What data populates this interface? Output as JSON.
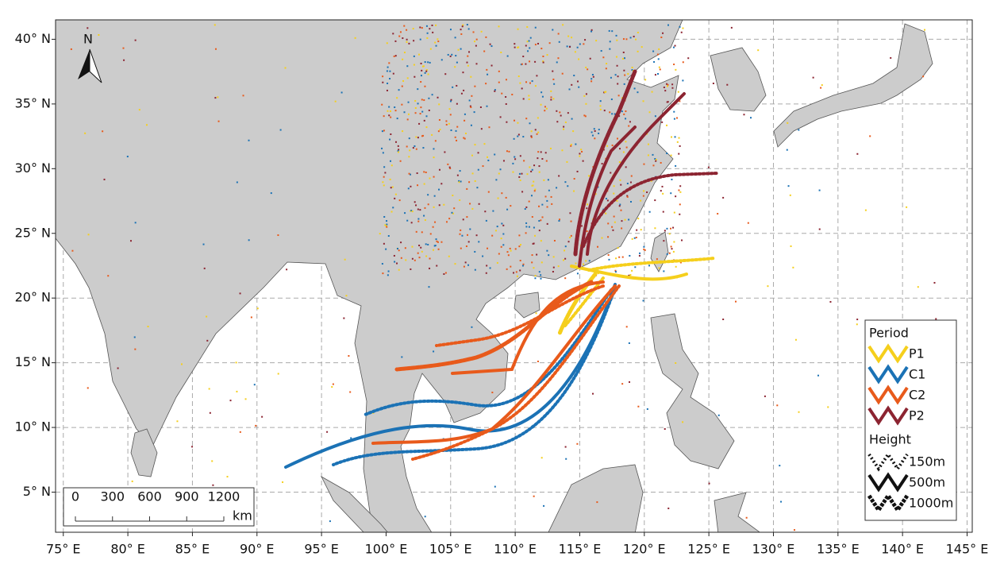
{
  "map": {
    "xlim": [
      74.4,
      145.4
    ],
    "ylim": [
      1.9,
      41.5
    ],
    "grid": true,
    "xticks": [
      {
        "value": 75,
        "label": "75° E"
      },
      {
        "value": 80,
        "label": "80° E"
      },
      {
        "value": 85,
        "label": "85° E"
      },
      {
        "value": 90,
        "label": "90° E"
      },
      {
        "value": 95,
        "label": "95° E"
      },
      {
        "value": 100,
        "label": "100° E"
      },
      {
        "value": 105,
        "label": "105° E"
      },
      {
        "value": 110,
        "label": "110° E"
      },
      {
        "value": 115,
        "label": "115° E"
      },
      {
        "value": 120,
        "label": "120° E"
      },
      {
        "value": 125,
        "label": "125° E"
      },
      {
        "value": 130,
        "label": "130° E"
      },
      {
        "value": 135,
        "label": "135° E"
      },
      {
        "value": 140,
        "label": "140° E"
      },
      {
        "value": 145,
        "label": "145° E"
      }
    ],
    "yticks": [
      {
        "value": 5,
        "label": "5° N"
      },
      {
        "value": 10,
        "label": "10° N"
      },
      {
        "value": 15,
        "label": "15° N"
      },
      {
        "value": 20,
        "label": "20° N"
      },
      {
        "value": 25,
        "label": "25° N"
      },
      {
        "value": 30,
        "label": "30° N"
      },
      {
        "value": 35,
        "label": "35° N"
      },
      {
        "value": 40,
        "label": "40° N"
      }
    ],
    "north": "N",
    "legend": {
      "period_title": "Period",
      "periods": [
        {
          "name": "P1",
          "color": "#f5cf1c"
        },
        {
          "name": "C1",
          "color": "#1b72b5"
        },
        {
          "name": "C2",
          "color": "#e85a1b"
        },
        {
          "name": "P2",
          "color": "#8c2431"
        }
      ],
      "height_title": "Height",
      "heights": [
        {
          "name": "150m",
          "style": "dot"
        },
        {
          "name": "500m",
          "style": "solid"
        },
        {
          "name": "1000m",
          "style": "dense"
        }
      ]
    },
    "scale_bar": {
      "ticks": [
        0,
        300,
        600,
        900,
        1200
      ],
      "lim": [
        0,
        1200
      ],
      "unit": "km"
    }
  }
}
